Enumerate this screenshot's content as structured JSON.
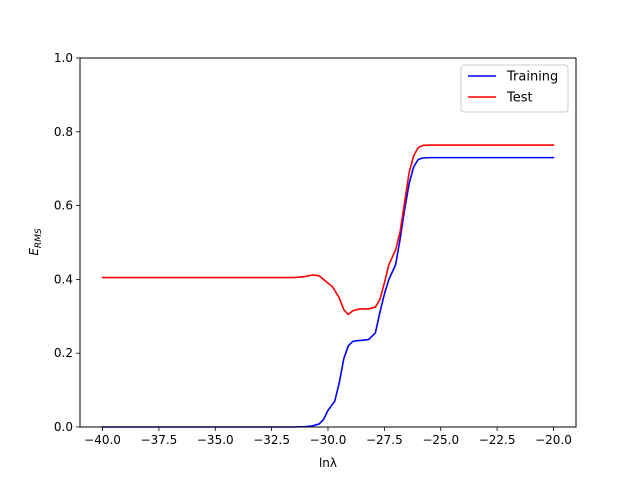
{
  "chart_data": {
    "type": "line",
    "title": "",
    "xlabel": "lnλ",
    "ylabel": {
      "main": "E",
      "subscript": "RMS"
    },
    "xlim": [
      -41,
      -19
    ],
    "ylim": [
      0,
      1
    ],
    "xticks": [
      -40,
      -37.5,
      -35,
      -32.5,
      -30,
      -27.5,
      -25,
      -22.5,
      -20
    ],
    "xtick_labels": [
      "−40.0",
      "−37.5",
      "−35.0",
      "−32.5",
      "−30.0",
      "−27.5",
      "−25.0",
      "−22.5",
      "−20.0"
    ],
    "yticks": [
      0,
      0.2,
      0.4,
      0.6,
      0.8,
      1.0
    ],
    "ytick_labels": [
      "0.0",
      "0.2",
      "0.4",
      "0.6",
      "0.8",
      "1.0"
    ],
    "grid": false,
    "legend": "top-right",
    "series": [
      {
        "name": "Training",
        "color": "#0000ff",
        "x": [
          -40,
          -35,
          -31.5,
          -31,
          -30.7,
          -30.4,
          -30.2,
          -30.0,
          -29.7,
          -29.5,
          -29.3,
          -29.1,
          -28.9,
          -28.7,
          -28.5,
          -28.2,
          -27.9,
          -27.7,
          -27.5,
          -27.3,
          -27.0,
          -26.8,
          -26.6,
          -26.4,
          -26.2,
          -26.0,
          -25.8,
          -25.5,
          -25.0,
          -22.5,
          -20
        ],
        "y": [
          0.0,
          0.0,
          0.0,
          0.001,
          0.003,
          0.008,
          0.02,
          0.045,
          0.07,
          0.12,
          0.185,
          0.22,
          0.232,
          0.234,
          0.235,
          0.237,
          0.255,
          0.31,
          0.36,
          0.4,
          0.44,
          0.51,
          0.59,
          0.66,
          0.705,
          0.725,
          0.729,
          0.73,
          0.73,
          0.73,
          0.73
        ]
      },
      {
        "name": "Test",
        "color": "#ff0000",
        "x": [
          -40,
          -35,
          -31.5,
          -31.0,
          -30.7,
          -30.4,
          -30.1,
          -29.8,
          -29.5,
          -29.3,
          -29.1,
          -28.9,
          -28.6,
          -28.2,
          -27.9,
          -27.7,
          -27.5,
          -27.3,
          -27.0,
          -26.8,
          -26.6,
          -26.4,
          -26.2,
          -26.0,
          -25.8,
          -25.5,
          -25.0,
          -22.5,
          -20
        ],
        "y": [
          0.405,
          0.405,
          0.405,
          0.408,
          0.412,
          0.41,
          0.395,
          0.38,
          0.35,
          0.318,
          0.305,
          0.315,
          0.32,
          0.32,
          0.325,
          0.345,
          0.39,
          0.44,
          0.48,
          0.53,
          0.61,
          0.69,
          0.735,
          0.757,
          0.763,
          0.764,
          0.764,
          0.764,
          0.764
        ]
      }
    ]
  }
}
